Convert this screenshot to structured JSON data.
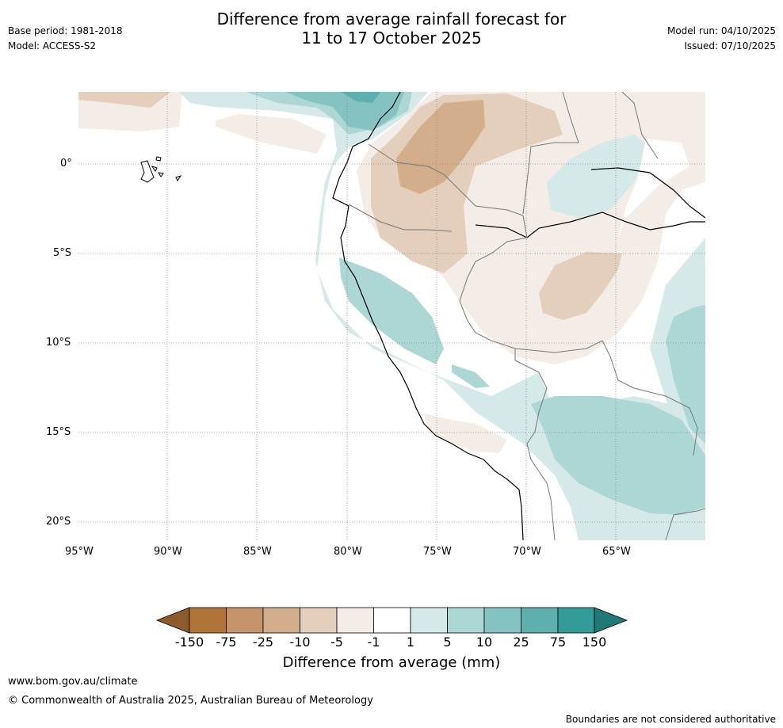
{
  "header": {
    "title_line1": "Difference from average rainfall forecast for",
    "title_line2": "11 to 17 October 2025",
    "base_period": "Base period: 1981-2018",
    "model": "Model: ACCESS-S2",
    "model_run": "Model run: 04/10/2025",
    "issued": "Issued: 07/10/2025"
  },
  "map": {
    "latitude_labels": [
      "0°",
      "5°S",
      "10°S",
      "15°S",
      "20°S"
    ],
    "longitude_labels": [
      "95°W",
      "90°W",
      "85°W",
      "80°W",
      "75°W",
      "70°W",
      "65°W"
    ],
    "layers": [
      "ocean",
      "land",
      "coastline",
      "borders",
      "rainfall-anomaly-contours",
      "graticule"
    ]
  },
  "colorbar": {
    "title": "Difference from average (mm)",
    "tick_labels": [
      "-150",
      "-75",
      "-25",
      "-10",
      "-5",
      "-1",
      "1",
      "5",
      "10",
      "25",
      "75",
      "150"
    ],
    "colors": [
      "#8c5a2b",
      "#b07439",
      "#c4946a",
      "#d2ae8a",
      "#e3cfbc",
      "#f4ece6",
      "#ffffff",
      "#d5eae8",
      "#acd7d5",
      "#84c3c1",
      "#5eafad",
      "#339c98",
      "#1f7a77"
    ]
  },
  "footer": {
    "website": "www.bom.gov.au/climate",
    "copyright": "© Commonwealth of Australia 2025, Australian Bureau of Meteorology",
    "disclaimer": "Boundaries are not considered authoritative"
  }
}
